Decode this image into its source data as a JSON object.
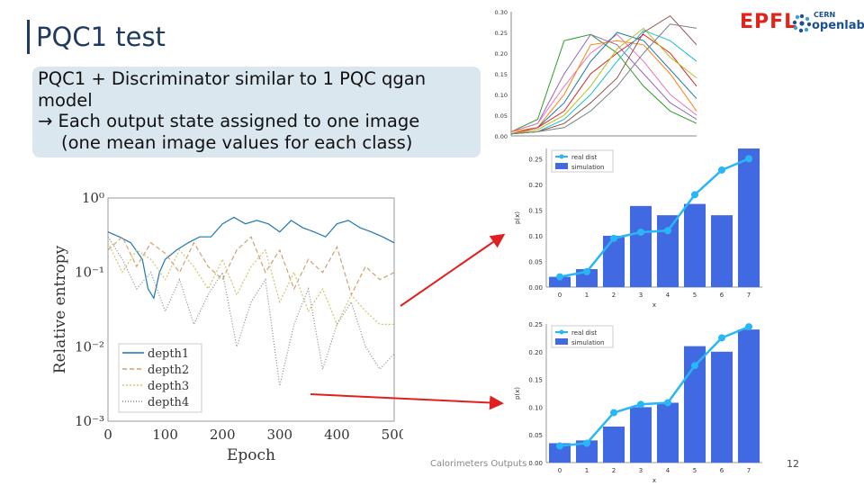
{
  "slide": {
    "title": "PQC1 test",
    "callout_lines": [
      "PQC1 + Discriminator similar to 1 PQC qgan",
      "model",
      "→ Each output state assigned to one image",
      "(one mean image values for each class)"
    ],
    "footer_text": "Calorimeters Outputs",
    "page_number": "12",
    "logo_epfl": "EPFL",
    "logo_cern_top": "CERN",
    "logo_cern_bottom": "openlab",
    "arrow_color": "#e02020"
  },
  "chart_data": [
    {
      "id": "relative-entropy",
      "type": "line",
      "xlabel": "Epoch",
      "ylabel": "Relative entropy",
      "yscale": "log",
      "xlim": [
        0,
        500
      ],
      "ylim": [
        0.001,
        1
      ],
      "xticks": [
        "0",
        "100",
        "200",
        "300",
        "400",
        "500"
      ],
      "yticks": [
        "10⁰",
        "10⁻¹",
        "10⁻²",
        "10⁻³"
      ],
      "legend_position": "lower-left",
      "series": [
        {
          "name": "depth1",
          "color": "#1f77b4",
          "dash": "",
          "x": [
            0,
            20,
            40,
            60,
            70,
            80,
            90,
            100,
            120,
            140,
            160,
            180,
            200,
            220,
            240,
            260,
            280,
            300,
            320,
            340,
            360,
            380,
            400,
            420,
            440,
            460,
            480,
            500
          ],
          "y": [
            0.35,
            0.3,
            0.25,
            0.15,
            0.06,
            0.045,
            0.1,
            0.15,
            0.2,
            0.25,
            0.3,
            0.3,
            0.45,
            0.55,
            0.45,
            0.5,
            0.45,
            0.35,
            0.5,
            0.4,
            0.35,
            0.3,
            0.45,
            0.5,
            0.4,
            0.35,
            0.3,
            0.25
          ]
        },
        {
          "name": "depth2",
          "color": "#d0a070",
          "dash": "5,3",
          "x": [
            0,
            25,
            50,
            75,
            100,
            125,
            150,
            175,
            200,
            225,
            250,
            275,
            300,
            325,
            350,
            375,
            400,
            425,
            450,
            475,
            500
          ],
          "y": [
            0.2,
            0.3,
            0.12,
            0.25,
            0.18,
            0.1,
            0.25,
            0.12,
            0.08,
            0.2,
            0.3,
            0.1,
            0.2,
            0.06,
            0.15,
            0.1,
            0.22,
            0.05,
            0.12,
            0.08,
            0.1
          ]
        },
        {
          "name": "depth3",
          "color": "#cfc470",
          "dash": "2,2",
          "x": [
            0,
            25,
            50,
            75,
            100,
            125,
            150,
            175,
            200,
            225,
            250,
            275,
            300,
            325,
            350,
            375,
            400,
            425,
            450,
            475,
            500
          ],
          "y": [
            0.25,
            0.1,
            0.2,
            0.15,
            0.08,
            0.2,
            0.12,
            0.06,
            0.15,
            0.05,
            0.12,
            0.2,
            0.04,
            0.1,
            0.03,
            0.06,
            0.02,
            0.05,
            0.03,
            0.02,
            0.02
          ]
        },
        {
          "name": "depth4",
          "color": "#888888",
          "dash": "1,2",
          "x": [
            0,
            25,
            50,
            75,
            100,
            125,
            150,
            175,
            200,
            225,
            250,
            275,
            300,
            325,
            350,
            375,
            400,
            425,
            450,
            475,
            500
          ],
          "y": [
            0.3,
            0.15,
            0.06,
            0.1,
            0.03,
            0.08,
            0.02,
            0.05,
            0.1,
            0.01,
            0.04,
            0.08,
            0.003,
            0.02,
            0.06,
            0.005,
            0.02,
            0.04,
            0.01,
            0.005,
            0.008
          ]
        }
      ]
    },
    {
      "id": "class-distributions",
      "type": "line",
      "xlim": [
        0,
        7
      ],
      "ylim": [
        0,
        0.3
      ],
      "yticks": [
        "0.30",
        "0.25",
        "0.20",
        "0.15",
        "0.10",
        "0.05",
        "0.00"
      ],
      "grid": false,
      "series": [
        {
          "color": "#2ca02c",
          "x": [
            0,
            1,
            2,
            3,
            4,
            5,
            6,
            7
          ],
          "y": [
            0.01,
            0.04,
            0.23,
            0.245,
            0.2,
            0.12,
            0.06,
            0.03
          ]
        },
        {
          "color": "#9467bd",
          "x": [
            0,
            1,
            2,
            3,
            4,
            5,
            6,
            7
          ],
          "y": [
            0.01,
            0.03,
            0.15,
            0.245,
            0.22,
            0.15,
            0.08,
            0.04
          ]
        },
        {
          "color": "#e377c2",
          "x": [
            0,
            1,
            2,
            3,
            4,
            5,
            6,
            7
          ],
          "y": [
            0.01,
            0.03,
            0.12,
            0.2,
            0.245,
            0.18,
            0.1,
            0.05
          ]
        },
        {
          "color": "#ff7f0e",
          "x": [
            0,
            1,
            2,
            3,
            4,
            5,
            6,
            7
          ],
          "y": [
            0.01,
            0.02,
            0.1,
            0.22,
            0.23,
            0.22,
            0.15,
            0.06
          ]
        },
        {
          "color": "#1f77b4",
          "x": [
            0,
            1,
            2,
            3,
            4,
            5,
            6,
            7
          ],
          "y": [
            0.005,
            0.02,
            0.08,
            0.18,
            0.25,
            0.23,
            0.16,
            0.09
          ]
        },
        {
          "color": "#d62728",
          "x": [
            0,
            1,
            2,
            3,
            4,
            5,
            6,
            7
          ],
          "y": [
            0.005,
            0.02,
            0.06,
            0.15,
            0.2,
            0.245,
            0.2,
            0.12
          ]
        },
        {
          "color": "#bcbd22",
          "x": [
            0,
            1,
            2,
            3,
            4,
            5,
            6,
            7
          ],
          "y": [
            0.005,
            0.015,
            0.05,
            0.12,
            0.21,
            0.26,
            0.19,
            0.14
          ]
        },
        {
          "color": "#17becf",
          "x": [
            0,
            1,
            2,
            3,
            4,
            5,
            6,
            7
          ],
          "y": [
            0.005,
            0.01,
            0.04,
            0.1,
            0.18,
            0.255,
            0.23,
            0.18
          ]
        },
        {
          "color": "#8c564b",
          "x": [
            0,
            1,
            2,
            3,
            4,
            5,
            6,
            7
          ],
          "y": [
            0.005,
            0.01,
            0.03,
            0.08,
            0.14,
            0.25,
            0.29,
            0.22
          ]
        },
        {
          "color": "#7f7f7f",
          "x": [
            0,
            1,
            2,
            3,
            4,
            5,
            6,
            7
          ],
          "y": [
            0.005,
            0.01,
            0.02,
            0.06,
            0.12,
            0.2,
            0.27,
            0.26
          ]
        }
      ]
    },
    {
      "id": "dist-upper",
      "type": "bar",
      "categories": [
        "0",
        "1",
        "2",
        "3",
        "4",
        "5",
        "6",
        "7"
      ],
      "xlabel": "x",
      "ylabel": "p(x)",
      "ylim": [
        0,
        0.27
      ],
      "yticks": [
        "0.25",
        "0.20",
        "0.15",
        "0.10",
        "0.05",
        "0.00"
      ],
      "legend_position": "top-left",
      "series": [
        {
          "name": "simulation",
          "kind": "bar",
          "color": "#4169e1",
          "values": [
            0.02,
            0.035,
            0.1,
            0.158,
            0.14,
            0.162,
            0.14,
            0.27
          ]
        },
        {
          "name": "real dist",
          "kind": "line",
          "color": "#29b6f6",
          "values": [
            0.02,
            0.03,
            0.095,
            0.107,
            0.11,
            0.18,
            0.228,
            0.25
          ]
        }
      ]
    },
    {
      "id": "dist-lower",
      "type": "bar",
      "categories": [
        "0",
        "1",
        "2",
        "3",
        "4",
        "5",
        "6",
        "7"
      ],
      "xlabel": "x",
      "ylabel": "p(x)",
      "ylim": [
        0,
        0.25
      ],
      "yticks": [
        "0.25",
        "0.20",
        "0.15",
        "0.10",
        "0.05",
        "0.00"
      ],
      "legend_position": "top-left",
      "series": [
        {
          "name": "simulation",
          "kind": "bar",
          "color": "#4169e1",
          "values": [
            0.035,
            0.04,
            0.065,
            0.1,
            0.108,
            0.21,
            0.2,
            0.24
          ]
        },
        {
          "name": "real dist",
          "kind": "line",
          "color": "#29b6f6",
          "values": [
            0.03,
            0.035,
            0.09,
            0.105,
            0.108,
            0.175,
            0.225,
            0.245
          ]
        }
      ]
    }
  ]
}
